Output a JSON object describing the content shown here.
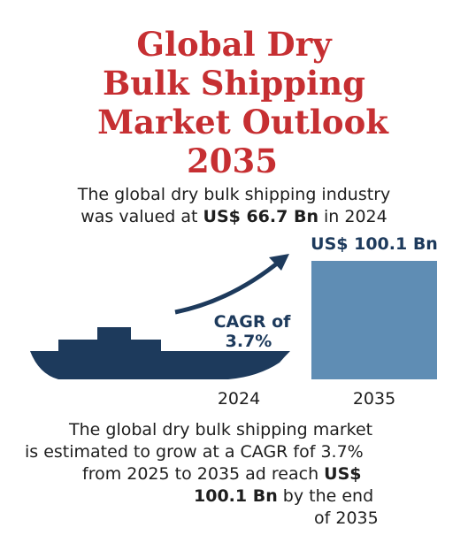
{
  "title": {
    "line1": "Global Dry",
    "line2": "Bulk Shipping",
    "line3": "Market Outlook",
    "line4": "2035"
  },
  "intro": {
    "pre": "The global dry bulk shipping industry",
    "mid": "was valued at ",
    "value": "US$ 66.7 Bn",
    "post": " in 2024"
  },
  "cagr": {
    "line1": "CAGR of",
    "line2": "3.7%"
  },
  "chart_data": {
    "type": "bar",
    "categories": [
      "2024",
      "2035"
    ],
    "values": [
      66.7,
      100.1
    ],
    "labels": [
      "",
      "US$ 100.1 Bn"
    ],
    "unit": "US$ Bn",
    "colors": {
      "bar": "#5f8db4",
      "ship": "#1d3a5c",
      "arrow": "#1d3a5c"
    }
  },
  "outro": {
    "l1": "The global dry bulk shipping market",
    "l2": "is estimated to grow at a CAGR fof 3.7%",
    "l3a": "from 2025 to 2035 ad reach ",
    "l3b": "US$",
    "l4a": "100.1 Bn",
    "l4b": " by the end",
    "l5": "of 2035"
  },
  "colors": {
    "title": "#c62f32",
    "text": "#1e1e1e",
    "navy": "#1d3a5c",
    "bar": "#5f8db4"
  }
}
